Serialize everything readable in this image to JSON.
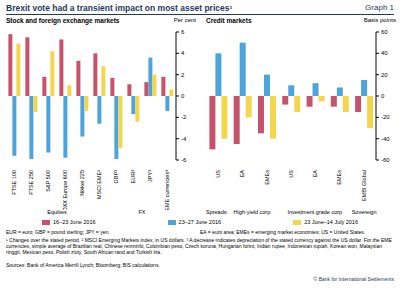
{
  "title": "Brexit vote had a transient impact on most asset prices¹",
  "graph_label": "Graph 1",
  "chart_data": [
    {
      "type": "bar",
      "title": "Stock and foreign exchange markets",
      "y_label": "Per cent",
      "categories": [
        "FTSE 100",
        "FTSE 250",
        "S&P 500",
        "STOXX Europe 600",
        "Nikkei 225",
        "MSCI EME²",
        "GBP³",
        "EUR³",
        "JPY³",
        "EME currencies³"
      ],
      "annotations": [
        "Equities",
        "FX"
      ],
      "series": [
        {
          "name": "16–23 June 2016",
          "color": "#c8526c",
          "values": [
            5.8,
            5.5,
            1.8,
            5.3,
            3.3,
            4.0,
            1.7,
            1.1,
            1.3,
            1.8
          ]
        },
        {
          "name": "23–27 June 2016",
          "color": "#4da3dc",
          "values": [
            -5.6,
            -5.9,
            -5.3,
            -5.8,
            -3.8,
            -2.6,
            -5.9,
            -1.7,
            3.6,
            -1.4
          ]
        },
        {
          "name": "23 June–14 July 2016",
          "color": "#f2d64b",
          "values": [
            4.9,
            -1.5,
            4.2,
            1.0,
            -1.4,
            2.8,
            -4.9,
            -2.4,
            2.0,
            0.6
          ]
        }
      ],
      "ylim": [
        -6,
        6
      ],
      "yticks": [
        -6,
        -4,
        -2,
        0,
        2,
        4,
        6
      ],
      "grid": false,
      "legend": "bottom"
    },
    {
      "type": "bar",
      "title": "Credit markets",
      "y_label": "Basis points",
      "categories": [
        "US",
        "EA",
        "EMEs",
        "US",
        "EA",
        "EMEs",
        "EMBI Global"
      ],
      "annotations": [
        "Spreads:",
        "High-yield corp",
        "Investment grade corp",
        "Sovereign"
      ],
      "series": [
        {
          "name": "16–23 June 2016",
          "color": "#c8526c",
          "values": [
            -50,
            -45,
            -35,
            -8,
            -10,
            -10,
            -15
          ]
        },
        {
          "name": "23–27 June 2016",
          "color": "#4da3dc",
          "values": [
            40,
            50,
            20,
            10,
            12,
            8,
            15
          ]
        },
        {
          "name": "23 June–14 July 2016",
          "color": "#f2d64b",
          "values": [
            -40,
            -20,
            -40,
            -15,
            -5,
            -15,
            -30
          ]
        }
      ],
      "ylim": [
        -60,
        60
      ],
      "yticks": [
        -60,
        -40,
        -20,
        0,
        20,
        40,
        60
      ],
      "grid": false,
      "legend": "bottom"
    }
  ],
  "abbreviations": [
    "EUR = euro; GBP = pound sterling; JPY = yen.",
    "EA = euro area; EMEs = emerging market economies; US = United States."
  ],
  "footnotes": [
    "¹ Changes over the stated period.",
    "² MSCI Emerging Markets index, in US dollars.",
    "³ A decrease indicates depreciation of the stated currency against the US dollar. For the EME currencies, simple average of Brazilian real, Chinese renminbi, Colombian peso, Czech koruna, Hungarian forint, Indian rupee, Indonesian rupiah, Korean won, Malaysian ringgit, Mexican peso, Polish zloty, South African rand and Turkish lira."
  ],
  "sources": "Sources: Bank of America Merrill Lynch; Bloomberg; BIS calculations.",
  "copyright": "© Bank for International Settlements"
}
